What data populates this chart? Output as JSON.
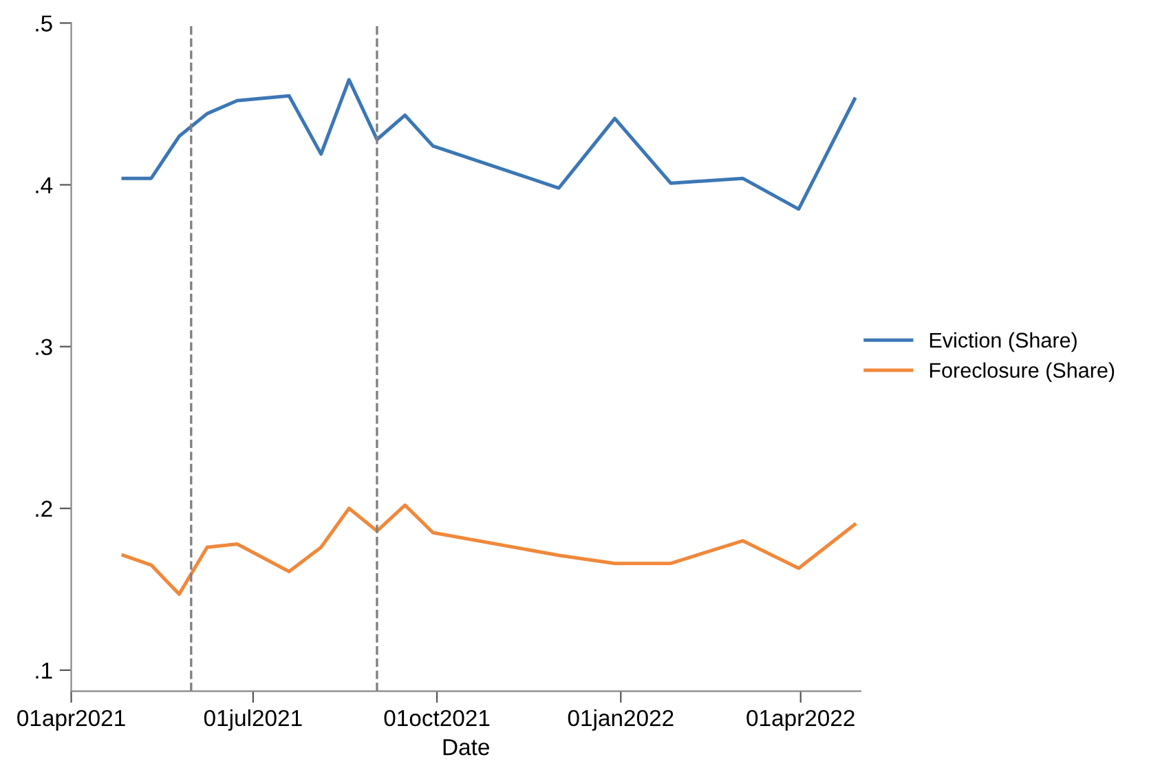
{
  "chart_data": {
    "type": "line",
    "xlabel": "Date",
    "x": [
      "2021-04-27",
      "2021-05-11",
      "2021-05-25",
      "2021-06-08",
      "2021-06-23",
      "2021-07-19",
      "2021-08-04",
      "2021-08-18",
      "2021-09-01",
      "2021-09-15",
      "2021-09-29",
      "2021-12-01",
      "2021-12-29",
      "2022-01-26",
      "2022-03-03",
      "2022-03-31",
      "2022-04-28"
    ],
    "series": [
      {
        "name": "Eviction (Share)",
        "color": "#3c77b5",
        "values": [
          0.404,
          0.404,
          0.43,
          0.444,
          0.452,
          0.455,
          0.419,
          0.465,
          0.428,
          0.443,
          0.424,
          0.398,
          0.441,
          0.401,
          0.404,
          0.385,
          0.453
        ]
      },
      {
        "name": "Foreclosure (Share)",
        "color": "#f0883a",
        "values": [
          0.171,
          0.165,
          0.147,
          0.176,
          0.178,
          0.161,
          0.176,
          0.2,
          0.186,
          0.202,
          0.185,
          0.171,
          0.166,
          0.166,
          0.18,
          0.163,
          0.19
        ]
      }
    ],
    "xlim": [
      "2021-04-01",
      "2022-05-01"
    ],
    "xticks": [
      {
        "value": "2021-04-01",
        "label": "01apr2021"
      },
      {
        "value": "2021-07-01",
        "label": "01jul2021"
      },
      {
        "value": "2021-10-01",
        "label": "01oct2021"
      },
      {
        "value": "2022-01-01",
        "label": "01jan2022"
      },
      {
        "value": "2022-04-01",
        "label": "01apr2022"
      }
    ],
    "ylim": [
      0.087,
      0.5
    ],
    "yticks": [
      {
        "value": 0.1,
        "label": ".1"
      },
      {
        "value": 0.2,
        "label": ".2"
      },
      {
        "value": 0.3,
        "label": ".3"
      },
      {
        "value": 0.4,
        "label": ".4"
      },
      {
        "value": 0.5,
        "label": ".5"
      }
    ],
    "ref_lines": [
      {
        "axis": "x",
        "value": "2021-05-31",
        "color": "#808080",
        "line_style": "dashed"
      },
      {
        "axis": "x",
        "value": "2021-09-01",
        "color": "#808080",
        "line_style": "dashed"
      }
    ],
    "grid": false,
    "legend": "right",
    "marker": "none",
    "line_style": "solid"
  }
}
